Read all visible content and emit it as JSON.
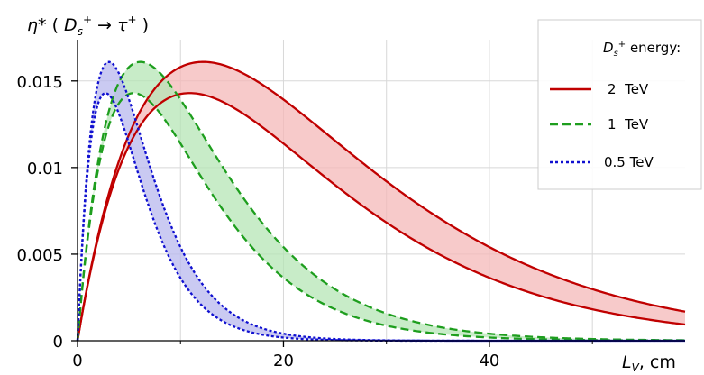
{
  "chart_data": {
    "type": "area",
    "title": "",
    "ylabel": {
      "eta": "η*",
      "open": " ( ",
      "d": "D",
      "ds_sub": "s",
      "ds_sup": "+",
      "arrow": " → ",
      "tau": "τ",
      "tau_sup": "+",
      "close": " )"
    },
    "xlabel": {
      "l": "L",
      "sub": "V",
      "unit": ", cm"
    },
    "xlim": [
      0,
      59
    ],
    "ylim": [
      0,
      0.0178
    ],
    "x_ticks": [
      0,
      20,
      40
    ],
    "x_tick_labels": [
      "0",
      "20",
      "40"
    ],
    "x_minor_ticks": [
      10,
      30,
      50
    ],
    "y_ticks": [
      0,
      0.005,
      0.01,
      0.015
    ],
    "y_tick_labels": [
      "0",
      "0.005",
      "0.01",
      "0.015"
    ],
    "grid": true,
    "legend": {
      "position": "top-right",
      "title": {
        "d": "D",
        "sub": "s",
        "sup": "+",
        "rest": " energy:"
      },
      "entries": [
        "2  TeV",
        "1  TeV",
        "0.5 TeV"
      ]
    },
    "series": [
      {
        "label": "2  TeV",
        "color": "#c00000",
        "fill": "#f4b8b8",
        "style": "solid",
        "peak_upper": 12.2,
        "peak_lower": 10.9,
        "max_upper": 0.0161,
        "max_lower": 0.0143
      },
      {
        "label": "1  TeV",
        "color": "#1e9e1e",
        "fill": "#b5e6b5",
        "style": "dashed",
        "peak_upper": 6.1,
        "peak_lower": 5.45,
        "max_upper": 0.0161,
        "max_lower": 0.0143
      },
      {
        "label": "0.5 TeV",
        "color": "#1010d0",
        "fill": "#b8b8ee",
        "style": "dotted",
        "peak_upper": 3.05,
        "peak_lower": 2.72,
        "max_upper": 0.0161,
        "max_lower": 0.0143
      }
    ]
  }
}
